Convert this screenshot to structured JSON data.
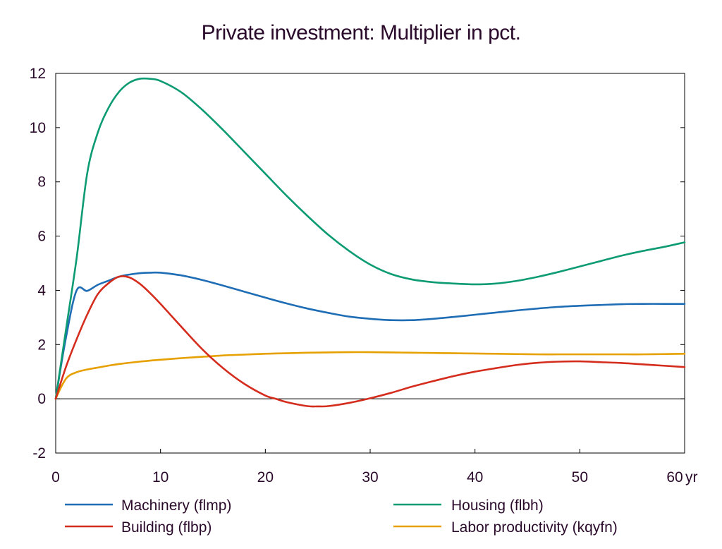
{
  "chart_data": {
    "type": "line",
    "title": "Private investment: Multiplier in pct.",
    "xlabel": "",
    "ylabel": "",
    "x_unit_label": "yr",
    "xlim": [
      0,
      60
    ],
    "ylim": [
      -2,
      12
    ],
    "x_ticks": [
      0,
      10,
      20,
      30,
      40,
      50,
      60
    ],
    "y_ticks": [
      -2,
      0,
      2,
      4,
      6,
      8,
      10,
      12
    ],
    "grid": false,
    "zero_line": true,
    "legend_placement": "bottom",
    "series": [
      {
        "name": "Machinery (flmp)",
        "color": "#1f6db4",
        "x": [
          0,
          1,
          2,
          3,
          4,
          5,
          6,
          7,
          8,
          9,
          10,
          12,
          14,
          16,
          18,
          20,
          22,
          24,
          26,
          28,
          30,
          32,
          34,
          36,
          38,
          40,
          42,
          44,
          46,
          48,
          50,
          52,
          54,
          56,
          58,
          60
        ],
        "y": [
          0,
          2.3,
          4.0,
          3.98,
          4.2,
          4.35,
          4.5,
          4.58,
          4.63,
          4.65,
          4.65,
          4.55,
          4.38,
          4.17,
          3.95,
          3.73,
          3.52,
          3.33,
          3.17,
          3.03,
          2.95,
          2.9,
          2.9,
          2.95,
          3.02,
          3.1,
          3.18,
          3.26,
          3.33,
          3.39,
          3.43,
          3.46,
          3.49,
          3.5,
          3.5,
          3.5
        ]
      },
      {
        "name": "Housing (flbh)",
        "color": "#0d9b73",
        "x": [
          0,
          1,
          2,
          3,
          4,
          5,
          6,
          7,
          8,
          9,
          10,
          12,
          14,
          16,
          18,
          20,
          22,
          24,
          26,
          28,
          30,
          32,
          34,
          36,
          38,
          40,
          42,
          44,
          46,
          48,
          50,
          52,
          54,
          56,
          58,
          60
        ],
        "y": [
          0,
          2.6,
          5.2,
          8.3,
          9.8,
          10.7,
          11.3,
          11.65,
          11.8,
          11.8,
          11.72,
          11.3,
          10.65,
          9.9,
          9.1,
          8.3,
          7.5,
          6.75,
          6.05,
          5.45,
          4.95,
          4.6,
          4.4,
          4.3,
          4.25,
          4.22,
          4.25,
          4.35,
          4.5,
          4.68,
          4.88,
          5.08,
          5.28,
          5.45,
          5.6,
          5.77
        ]
      },
      {
        "name": "Building (flbp)",
        "color": "#d42d1e",
        "x": [
          0,
          1,
          2,
          3,
          4,
          5,
          6,
          7,
          8,
          9,
          10,
          12,
          14,
          16,
          18,
          20,
          21,
          22,
          24,
          25,
          26,
          28,
          30,
          32,
          34,
          36,
          38,
          40,
          42,
          44,
          46,
          48,
          50,
          52,
          54,
          56,
          58,
          60
        ],
        "y": [
          0,
          1.2,
          2.2,
          3.1,
          3.85,
          4.25,
          4.5,
          4.48,
          4.25,
          3.9,
          3.5,
          2.65,
          1.82,
          1.12,
          0.55,
          0.12,
          0.0,
          -0.12,
          -0.27,
          -0.28,
          -0.27,
          -0.15,
          0.02,
          0.22,
          0.45,
          0.65,
          0.84,
          1.0,
          1.13,
          1.25,
          1.33,
          1.37,
          1.38,
          1.35,
          1.32,
          1.27,
          1.22,
          1.17
        ]
      },
      {
        "name": "Labor productivity (kqyfn)",
        "color": "#e6a000",
        "x": [
          0,
          1,
          2,
          3,
          4,
          5,
          6,
          8,
          10,
          12,
          14,
          16,
          18,
          20,
          22,
          24,
          26,
          28,
          30,
          32,
          34,
          36,
          38,
          40,
          42,
          44,
          46,
          48,
          50,
          52,
          54,
          56,
          58,
          60
        ],
        "y": [
          0,
          0.75,
          0.98,
          1.08,
          1.15,
          1.22,
          1.28,
          1.37,
          1.44,
          1.5,
          1.55,
          1.6,
          1.63,
          1.66,
          1.68,
          1.7,
          1.71,
          1.72,
          1.72,
          1.71,
          1.7,
          1.69,
          1.68,
          1.67,
          1.66,
          1.65,
          1.64,
          1.64,
          1.64,
          1.64,
          1.64,
          1.64,
          1.65,
          1.66
        ]
      }
    ]
  }
}
